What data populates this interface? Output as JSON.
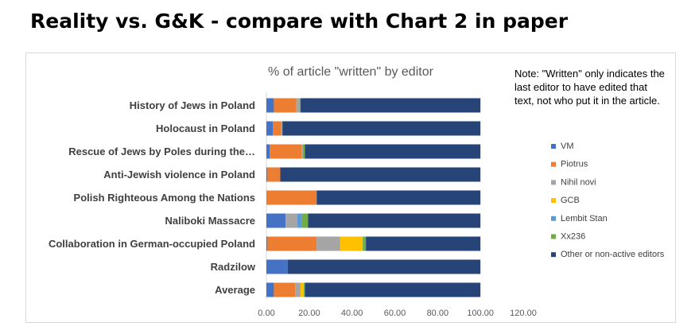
{
  "page": {
    "title": "Reality vs. G&K - compare with Chart 2 in paper",
    "note": "Note: \"Written\" only indicates the last editor to have edited that text, not who put it in the article."
  },
  "chart_data": {
    "type": "bar",
    "orientation": "horizontal",
    "stacked": true,
    "title": "% of article \"written\" by editor",
    "xlabel": "",
    "ylabel": "",
    "xlim": [
      0,
      120
    ],
    "x_ticks": [
      "0.00",
      "20.00",
      "40.00",
      "60.00",
      "80.00",
      "100.00",
      "120.00"
    ],
    "grid": false,
    "legend_position": "right",
    "categories": [
      "History of Jews in Poland",
      "Holocaust in Poland",
      "Rescue of Jews by Poles during the…",
      "Anti-Jewish violence in Poland",
      "Polish Righteous Among the Nations",
      "Naliboki Massacre",
      "Collaboration in German-occupied Poland",
      "Radzilow",
      "Average"
    ],
    "series": [
      {
        "name": "VM",
        "color": "#4472c4",
        "values": [
          3.5,
          3,
          1.5,
          0.5,
          0,
          9,
          0.5,
          10,
          3.5
        ]
      },
      {
        "name": "Piotrus",
        "color": "#ed7d31",
        "values": [
          10.5,
          4,
          15,
          6,
          23.5,
          0,
          23,
          0,
          10
        ]
      },
      {
        "name": "Nihil novi",
        "color": "#a5a5a5",
        "values": [
          1.5,
          0.5,
          0.5,
          0,
          0,
          5.5,
          11,
          0,
          2.5
        ]
      },
      {
        "name": "GCB",
        "color": "#ffc000",
        "values": [
          0,
          0,
          0,
          0,
          0,
          0,
          10.5,
          0,
          1.5
        ]
      },
      {
        "name": "Lembit Stan",
        "color": "#5b9bd5",
        "values": [
          0,
          0,
          0,
          0,
          0,
          2,
          0,
          0,
          0
        ]
      },
      {
        "name": "Xx236",
        "color": "#70ad47",
        "values": [
          0.5,
          0,
          1,
          0,
          0,
          3,
          1.5,
          0,
          0.5
        ]
      },
      {
        "name": "Other or non-active editors",
        "color": "#264478",
        "values": [
          84,
          92.5,
          82,
          93.5,
          76.5,
          80.5,
          53.5,
          90,
          82
        ]
      }
    ]
  }
}
